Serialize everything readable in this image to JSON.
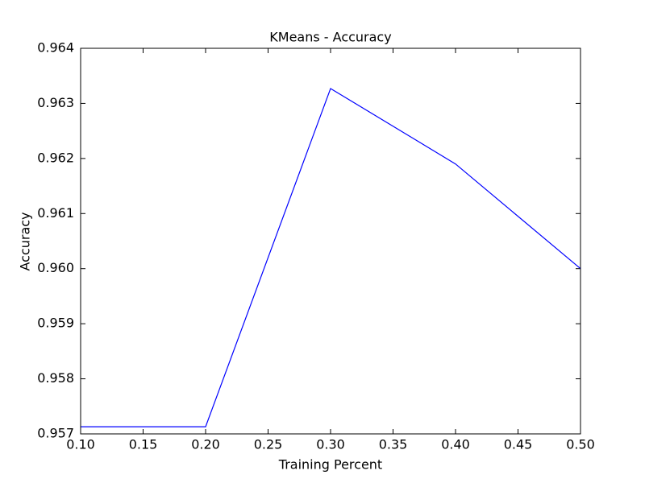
{
  "chart_data": {
    "type": "line",
    "title": "KMeans - Accuracy",
    "x_label": "Training Percent",
    "y_label": "Accuracy",
    "x": [
      0.1,
      0.2,
      0.3,
      0.4,
      0.5
    ],
    "values": [
      0.95713,
      0.95713,
      0.96327,
      0.9619,
      0.96
    ],
    "color": "#0000ff",
    "xlim": [
      0.1,
      0.5
    ],
    "xticks": [
      {
        "value": 0.1,
        "label": "0.10"
      },
      {
        "value": 0.15,
        "label": "0.15"
      },
      {
        "value": 0.2,
        "label": "0.20"
      },
      {
        "value": 0.25,
        "label": "0.25"
      },
      {
        "value": 0.3,
        "label": "0.30"
      },
      {
        "value": 0.35,
        "label": "0.35"
      },
      {
        "value": 0.4,
        "label": "0.40"
      },
      {
        "value": 0.45,
        "label": "0.45"
      },
      {
        "value": 0.5,
        "label": "0.50"
      }
    ],
    "ylim": [
      0.957,
      0.964
    ],
    "yticks": [
      0.957,
      0.958,
      0.959,
      {
        "value": 0.96,
        "label": "0.960"
      },
      0.961,
      0.962,
      0.963,
      0.964
    ]
  }
}
